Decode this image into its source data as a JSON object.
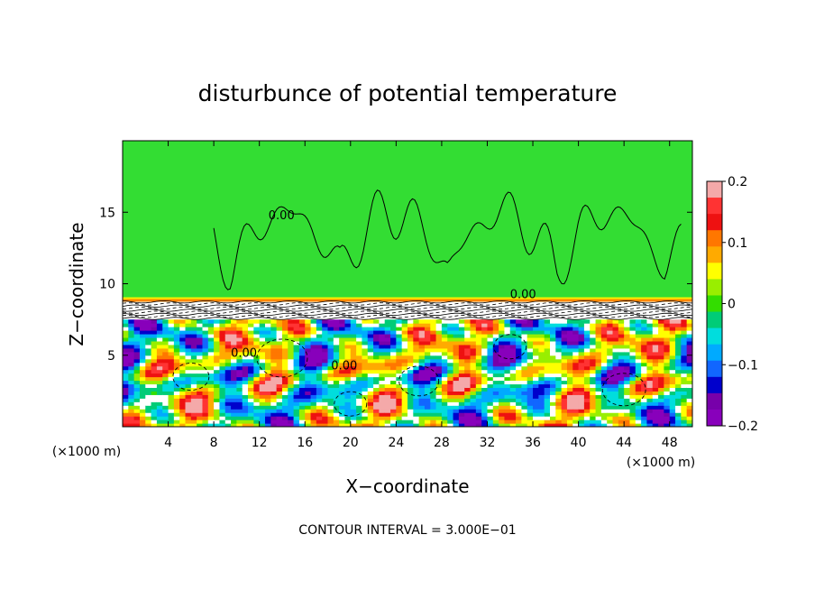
{
  "chart_data": {
    "type": "heatmap",
    "title": "disturbunce of potential temperature",
    "xlabel": "X−coordinate",
    "ylabel": "Z−coordinate",
    "x_unit": "(×1000 m)",
    "y_unit": "(×1000 m)",
    "footer": "CONTOUR INTERVAL = 3.000E−01",
    "xlim": [
      0,
      50
    ],
    "ylim": [
      0,
      20
    ],
    "xticks": [
      4,
      8,
      12,
      16,
      20,
      24,
      28,
      32,
      36,
      40,
      44,
      48
    ],
    "yticks": [
      5,
      10,
      15
    ],
    "contour_label": "0.00",
    "colorbar": {
      "range": [
        -0.2,
        0.2
      ],
      "ticks": [
        "0.2",
        "0.1",
        "0",
        "−0.1",
        "−0.2"
      ],
      "tick_values": [
        0.2,
        0.1,
        0,
        -0.1,
        -0.2
      ],
      "colors": [
        "#f4a9a9",
        "#ff3333",
        "#ee1111",
        "#ff7700",
        "#ffaa00",
        "#ffff00",
        "#99ee00",
        "#33dd00",
        "#00cc77",
        "#00dddd",
        "#00aaff",
        "#1166ff",
        "#0000cc",
        "#7700aa",
        "#8800bb"
      ]
    },
    "regions": {
      "upper_layer": {
        "z_range": [
          8.8,
          20
        ],
        "value": 0.0,
        "color": "#33dd33"
      },
      "inversion": {
        "z_range": [
          7.5,
          8.8
        ]
      },
      "lower_layer": {
        "z_range": [
          0,
          7.5
        ],
        "amplitude": 0.2
      }
    }
  }
}
